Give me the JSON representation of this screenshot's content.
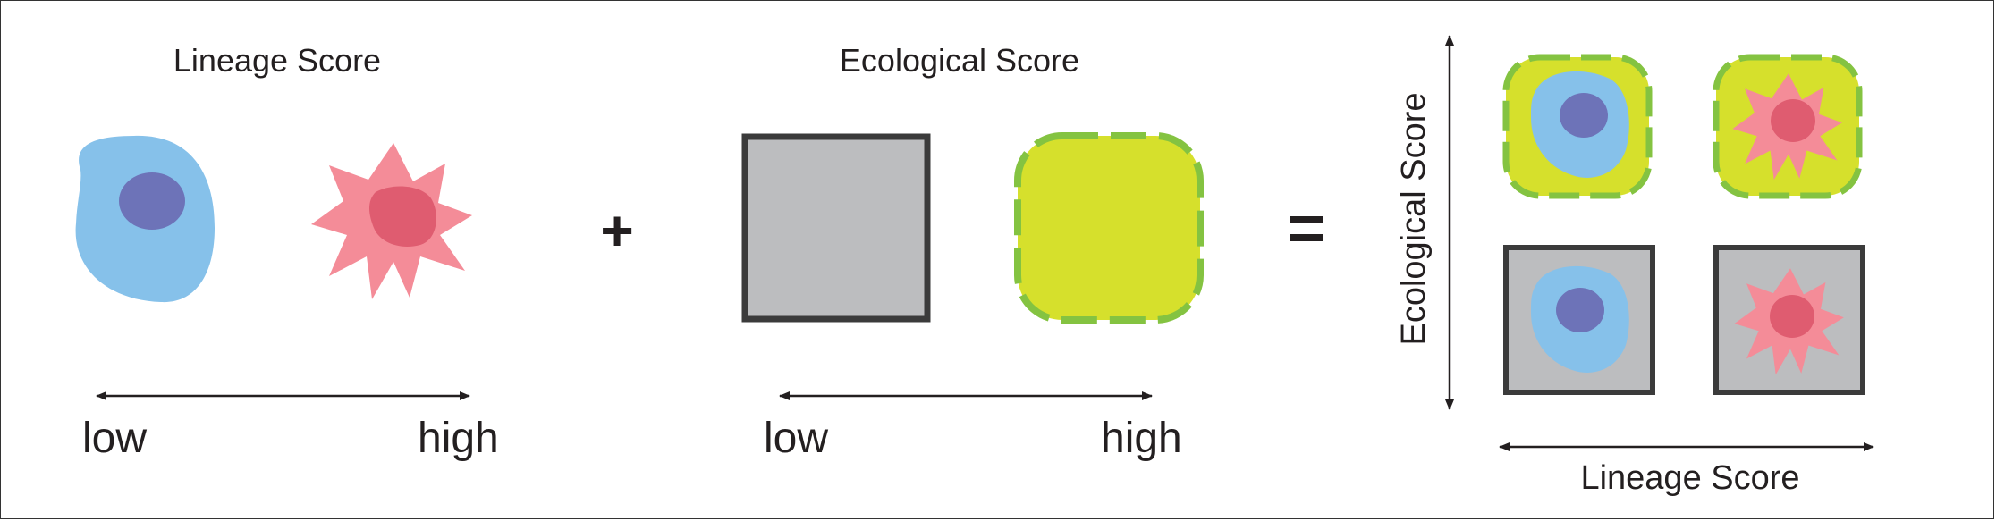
{
  "panel_lineage": {
    "title": "Lineage Score",
    "low_label": "low",
    "high_label": "high"
  },
  "operator_plus": "+",
  "panel_ecological": {
    "title": "Ecological Score",
    "low_label": "low",
    "high_label": "high"
  },
  "operator_equals": "=",
  "panel_combined": {
    "y_axis_label": "Ecological Score",
    "x_axis_label": "Lineage Score"
  },
  "colors": {
    "blue_cell": "#86c1ea",
    "blue_nucleus": "#6d73b8",
    "pink_cell": "#f48c98",
    "pink_nucleus": "#df5c70",
    "gray_niche": "#bcbdbf",
    "gray_border": "#3b3b3b",
    "yellow_niche": "#d6e02c",
    "green_dash": "#84c341",
    "text": "#231f20"
  },
  "icons": [
    "low-lineage-cell-icon",
    "high-lineage-cell-icon",
    "low-ecology-niche-icon",
    "high-ecology-niche-icon"
  ]
}
